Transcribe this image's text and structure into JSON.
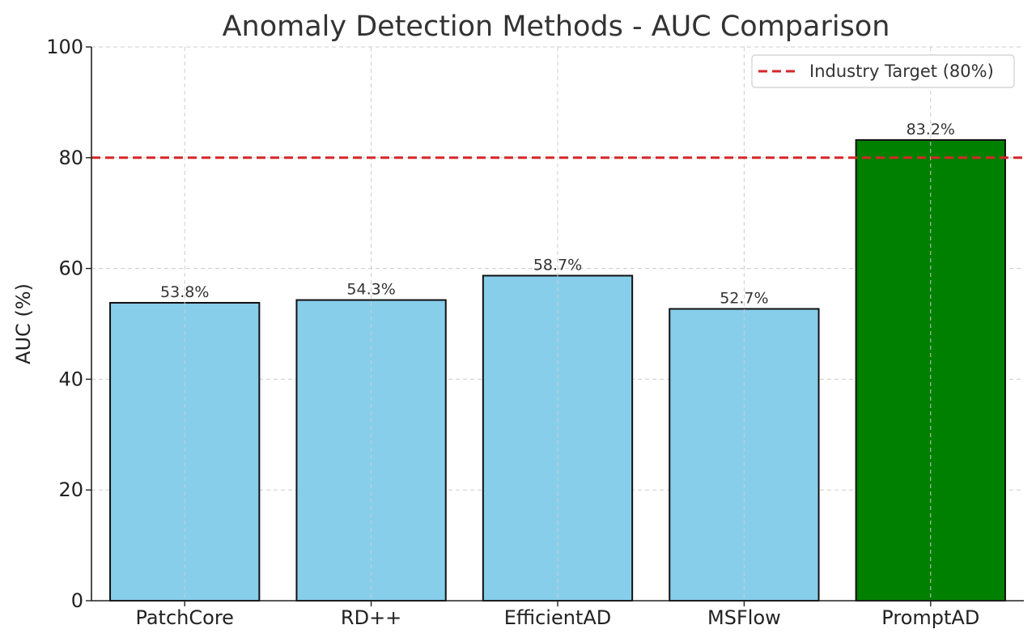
{
  "chart_data": {
    "type": "bar",
    "title": "Anomaly Detection Methods - AUC Comparison",
    "xlabel": "",
    "ylabel": "AUC (%)",
    "ylim": [
      0,
      100
    ],
    "yticks": [
      0,
      20,
      40,
      60,
      80,
      100
    ],
    "categories": [
      "PatchCore",
      "RD++",
      "EfficientAD",
      "MSFlow",
      "PromptAD"
    ],
    "values": [
      53.8,
      54.3,
      58.7,
      52.7,
      83.2
    ],
    "data_labels": [
      "53.8%",
      "54.3%",
      "58.7%",
      "52.7%",
      "83.2%"
    ],
    "bar_colors": [
      "#87CEEB",
      "#87CEEB",
      "#87CEEB",
      "#87CEEB",
      "#008000"
    ],
    "grid": true,
    "reference_line": {
      "label": "Industry Target (80%)",
      "value": 80,
      "color": "#d62728",
      "style": "dashed"
    },
    "legend_position": "top-right"
  }
}
